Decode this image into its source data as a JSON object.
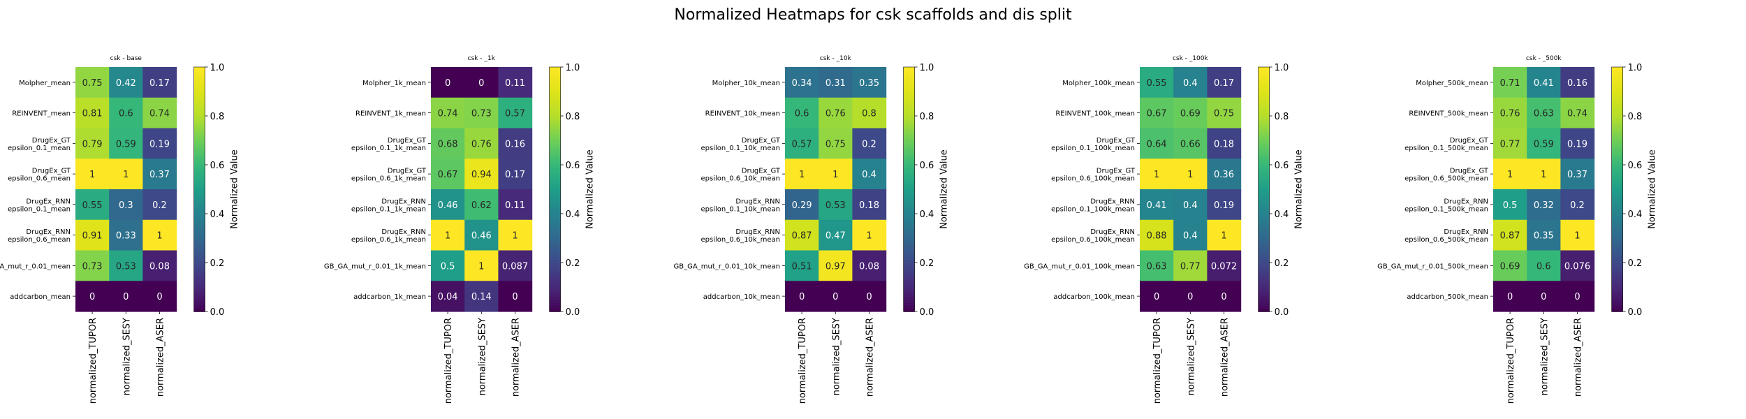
{
  "figure": {
    "title": "Normalized Heatmaps for csk scaffolds and dis split"
  },
  "colorbar": {
    "label": "Normalized Value",
    "ticks": [
      "0.0",
      "0.2",
      "0.4",
      "0.6",
      "0.8",
      "1.0"
    ],
    "cmap": "viridis"
  },
  "chart_data": [
    {
      "type": "heatmap",
      "title": "csk - base",
      "rows": [
        "Molpher_mean",
        "REINVENT_mean",
        "DrugEx_GT\nepsilon_0.1_mean",
        "DrugEx_GT\nepsilon_0.6_mean",
        "DrugEx_RNN\nepsilon_0.1_mean",
        "DrugEx_RNN\nepsilon_0.6_mean",
        "GB_GA_mut_r_0.01_mean",
        "addcarbon_mean"
      ],
      "columns": [
        "normalized_TUPOR",
        "normalized_SESY",
        "normalized_ASER"
      ],
      "values": [
        [
          0.75,
          0.42,
          0.17
        ],
        [
          0.81,
          0.6,
          0.74
        ],
        [
          0.79,
          0.59,
          0.19
        ],
        [
          1,
          1,
          0.37
        ],
        [
          0.55,
          0.3,
          0.2
        ],
        [
          0.91,
          0.33,
          1
        ],
        [
          0.73,
          0.53,
          0.08
        ],
        [
          0,
          0,
          0
        ]
      ],
      "labels": [
        [
          "0.75",
          "0.42",
          "0.17"
        ],
        [
          "0.81",
          "0.6",
          "0.74"
        ],
        [
          "0.79",
          "0.59",
          "0.19"
        ],
        [
          "1",
          "1",
          "0.37"
        ],
        [
          "0.55",
          "0.3",
          "0.2"
        ],
        [
          "0.91",
          "0.33",
          "1"
        ],
        [
          "0.73",
          "0.53",
          "0.08"
        ],
        [
          "0",
          "0",
          "0"
        ]
      ],
      "range": [
        0,
        1
      ]
    },
    {
      "type": "heatmap",
      "title": "csk - _1k",
      "rows": [
        "Molpher_1k_mean",
        "REINVENT_1k_mean",
        "DrugEx_GT\nepsilon_0.1_1k_mean",
        "DrugEx_GT\nepsilon_0.6_1k_mean",
        "DrugEx_RNN\nepsilon_0.1_1k_mean",
        "DrugEx_RNN\nepsilon_0.6_1k_mean",
        "GB_GA_mut_r_0.01_1k_mean",
        "addcarbon_1k_mean"
      ],
      "columns": [
        "normalized_TUPOR",
        "normalized_SESY",
        "normalized_ASER"
      ],
      "values": [
        [
          0,
          0,
          0.11
        ],
        [
          0.74,
          0.73,
          0.57
        ],
        [
          0.68,
          0.76,
          0.16
        ],
        [
          0.67,
          0.94,
          0.17
        ],
        [
          0.46,
          0.62,
          0.11
        ],
        [
          1,
          0.46,
          1
        ],
        [
          0.5,
          1,
          0.087
        ],
        [
          0.04,
          0.14,
          0
        ]
      ],
      "labels": [
        [
          "0",
          "0",
          "0.11"
        ],
        [
          "0.74",
          "0.73",
          "0.57"
        ],
        [
          "0.68",
          "0.76",
          "0.16"
        ],
        [
          "0.67",
          "0.94",
          "0.17"
        ],
        [
          "0.46",
          "0.62",
          "0.11"
        ],
        [
          "1",
          "0.46",
          "1"
        ],
        [
          "0.5",
          "1",
          "0.087"
        ],
        [
          "0.04",
          "0.14",
          "0"
        ]
      ],
      "range": [
        0,
        1
      ]
    },
    {
      "type": "heatmap",
      "title": "csk - _10k",
      "rows": [
        "Molpher_10k_mean",
        "REINVENT_10k_mean",
        "DrugEx_GT\nepsilon_0.1_10k_mean",
        "DrugEx_GT\nepsilon_0.6_10k_mean",
        "DrugEx_RNN\nepsilon_0.1_10k_mean",
        "DrugEx_RNN\nepsilon_0.6_10k_mean",
        "GB_GA_mut_r_0.01_10k_mean",
        "addcarbon_10k_mean"
      ],
      "columns": [
        "normalized_TUPOR",
        "normalized_SESY",
        "normalized_ASER"
      ],
      "values": [
        [
          0.34,
          0.31,
          0.35
        ],
        [
          0.6,
          0.76,
          0.8
        ],
        [
          0.57,
          0.75,
          0.2
        ],
        [
          1,
          1,
          0.4
        ],
        [
          0.29,
          0.53,
          0.18
        ],
        [
          0.87,
          0.47,
          1
        ],
        [
          0.51,
          0.97,
          0.08
        ],
        [
          0,
          0,
          0
        ]
      ],
      "labels": [
        [
          "0.34",
          "0.31",
          "0.35"
        ],
        [
          "0.6",
          "0.76",
          "0.8"
        ],
        [
          "0.57",
          "0.75",
          "0.2"
        ],
        [
          "1",
          "1",
          "0.4"
        ],
        [
          "0.29",
          "0.53",
          "0.18"
        ],
        [
          "0.87",
          "0.47",
          "1"
        ],
        [
          "0.51",
          "0.97",
          "0.08"
        ],
        [
          "0",
          "0",
          "0"
        ]
      ],
      "range": [
        0,
        1
      ]
    },
    {
      "type": "heatmap",
      "title": "csk - _100k",
      "rows": [
        "Molpher_100k_mean",
        "REINVENT_100k_mean",
        "DrugEx_GT\nepsilon_0.1_100k_mean",
        "DrugEx_GT\nepsilon_0.6_100k_mean",
        "DrugEx_RNN\nepsilon_0.1_100k_mean",
        "DrugEx_RNN\nepsilon_0.6_100k_mean",
        "GB_GA_mut_r_0.01_100k_mean",
        "addcarbon_100k_mean"
      ],
      "columns": [
        "normalized_TUPOR",
        "normalized_SESY",
        "normalized_ASER"
      ],
      "values": [
        [
          0.55,
          0.4,
          0.17
        ],
        [
          0.67,
          0.69,
          0.75
        ],
        [
          0.64,
          0.66,
          0.18
        ],
        [
          1,
          1,
          0.36
        ],
        [
          0.41,
          0.4,
          0.19
        ],
        [
          0.88,
          0.4,
          1
        ],
        [
          0.63,
          0.77,
          0.072
        ],
        [
          0,
          0,
          0
        ]
      ],
      "labels": [
        [
          "0.55",
          "0.4",
          "0.17"
        ],
        [
          "0.67",
          "0.69",
          "0.75"
        ],
        [
          "0.64",
          "0.66",
          "0.18"
        ],
        [
          "1",
          "1",
          "0.36"
        ],
        [
          "0.41",
          "0.4",
          "0.19"
        ],
        [
          "0.88",
          "0.4",
          "1"
        ],
        [
          "0.63",
          "0.77",
          "0.072"
        ],
        [
          "0",
          "0",
          "0"
        ]
      ],
      "range": [
        0,
        1
      ]
    },
    {
      "type": "heatmap",
      "title": "csk - _500k",
      "rows": [
        "Molpher_500k_mean",
        "REINVENT_500k_mean",
        "DrugEx_GT\nepsilon_0.1_500k_mean",
        "DrugEx_GT\nepsilon_0.6_500k_mean",
        "DrugEx_RNN\nepsilon_0.1_500k_mean",
        "DrugEx_RNN\nepsilon_0.6_500k_mean",
        "GB_GA_mut_r_0.01_500k_mean",
        "addcarbon_500k_mean"
      ],
      "columns": [
        "normalized_TUPOR",
        "normalized_SESY",
        "normalized_ASER"
      ],
      "values": [
        [
          0.71,
          0.41,
          0.16
        ],
        [
          0.76,
          0.63,
          0.74
        ],
        [
          0.77,
          0.59,
          0.19
        ],
        [
          1,
          1,
          0.37
        ],
        [
          0.5,
          0.32,
          0.2
        ],
        [
          0.87,
          0.35,
          1
        ],
        [
          0.69,
          0.6,
          0.076
        ],
        [
          0,
          0,
          0
        ]
      ],
      "labels": [
        [
          "0.71",
          "0.41",
          "0.16"
        ],
        [
          "0.76",
          "0.63",
          "0.74"
        ],
        [
          "0.77",
          "0.59",
          "0.19"
        ],
        [
          "1",
          "1",
          "0.37"
        ],
        [
          "0.5",
          "0.32",
          "0.2"
        ],
        [
          "0.87",
          "0.35",
          "1"
        ],
        [
          "0.69",
          "0.6",
          "0.076"
        ],
        [
          "0",
          "0",
          "0"
        ]
      ],
      "range": [
        0,
        1
      ]
    }
  ]
}
